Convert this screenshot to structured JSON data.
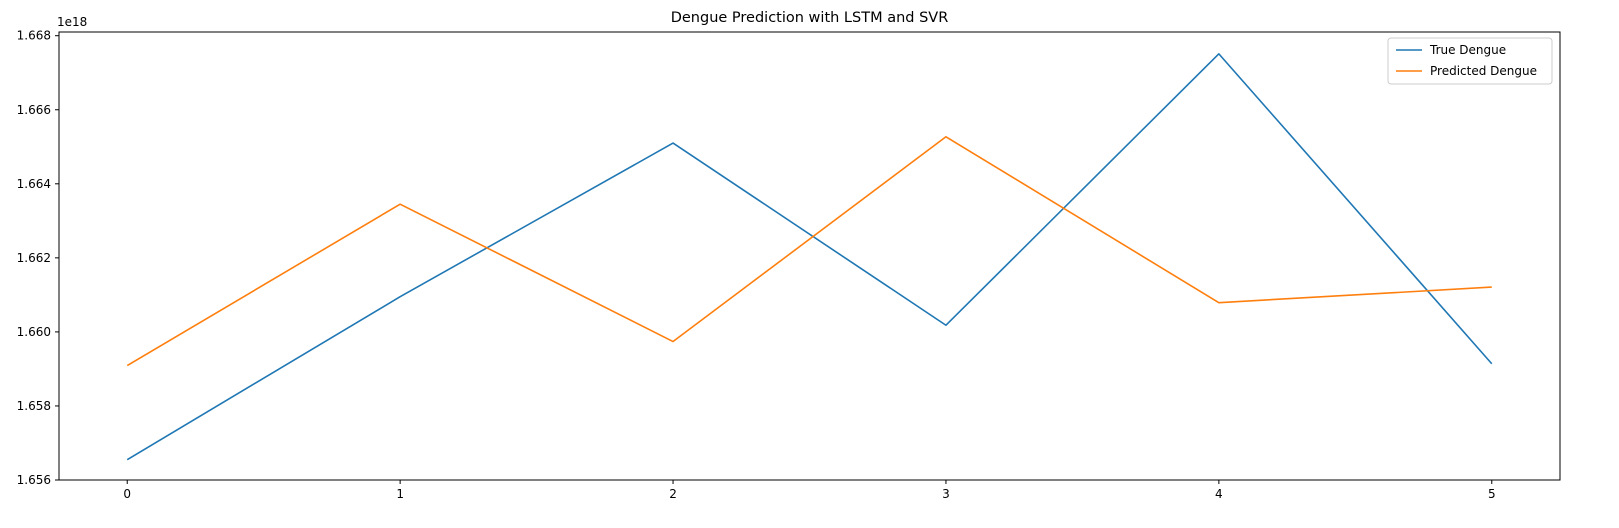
{
  "chart_data": {
    "type": "line",
    "title": "Dengue Prediction with LSTM and SVR",
    "xlabel": "",
    "ylabel": "",
    "x": [
      0,
      1,
      2,
      3,
      4,
      5
    ],
    "x_tick_labels": [
      "0",
      "1",
      "2",
      "3",
      "4",
      "5"
    ],
    "y_tick_labels": [
      "1.656",
      "1.658",
      "1.660",
      "1.662",
      "1.664",
      "1.666",
      "1.668"
    ],
    "y_tick_values": [
      1.656,
      1.658,
      1.66,
      1.662,
      1.664,
      1.666,
      1.668
    ],
    "y_offset_label": "1e18",
    "xlim": [
      -0.25,
      5.25
    ],
    "ylim": [
      1.656,
      1.6681
    ],
    "y_scale_note": "values shown in units of 1e18",
    "grid": false,
    "legend_position": "top-right",
    "series": [
      {
        "name": "True Dengue",
        "color": "#1f77b4",
        "values": [
          1.65655,
          1.66095,
          1.6651,
          1.66018,
          1.66751,
          1.65914
        ]
      },
      {
        "name": "Predicted Dengue",
        "color": "#ff7f0e",
        "values": [
          1.65909,
          1.66345,
          1.65974,
          1.66527,
          1.66079,
          1.66121
        ]
      }
    ]
  }
}
